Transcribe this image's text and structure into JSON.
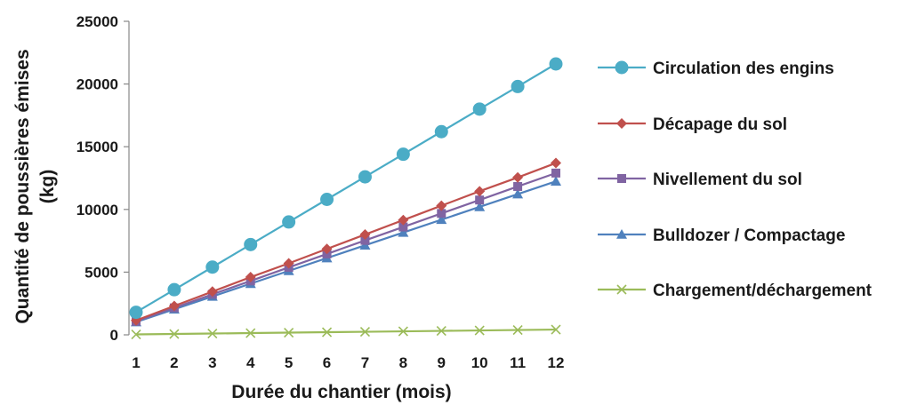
{
  "chart_data": {
    "type": "line",
    "title": "",
    "xlabel": "Durée du chantier (mois)",
    "ylabel_line1": "Quantité de poussières émises",
    "ylabel_line2": "(kg)",
    "x": [
      1,
      2,
      3,
      4,
      5,
      6,
      7,
      8,
      9,
      10,
      11,
      12
    ],
    "x_tick_labels": [
      "1",
      "2",
      "3",
      "4",
      "5",
      "6",
      "7",
      "8",
      "9",
      "10",
      "11",
      "12"
    ],
    "ylim": [
      0,
      25000
    ],
    "y_ticks": [
      0,
      5000,
      10000,
      15000,
      20000,
      25000
    ],
    "y_tick_labels": [
      "0",
      "5000",
      "10000",
      "15000",
      "20000",
      "25000"
    ],
    "grid": false,
    "legend_position": "right",
    "series": [
      {
        "name": "Circulation des engins",
        "color": "#4bacc6",
        "marker": "circle",
        "values": [
          1800,
          3600,
          5400,
          7200,
          9000,
          10800,
          12600,
          14400,
          16200,
          18000,
          19800,
          21600
        ]
      },
      {
        "name": "Décapage du sol",
        "color": "#c0504d",
        "marker": "diamond",
        "values": [
          1150,
          2300,
          3450,
          4600,
          5700,
          6850,
          8000,
          9150,
          10300,
          11450,
          12550,
          13700
        ]
      },
      {
        "name": "Nivellement du sol",
        "color": "#8064a2",
        "marker": "square",
        "values": [
          1080,
          2150,
          3230,
          4300,
          5380,
          6450,
          7530,
          8600,
          9680,
          10750,
          11830,
          12900
        ]
      },
      {
        "name": "Bulldozer / Compactage",
        "color": "#4f81bd",
        "marker": "triangle",
        "values": [
          1020,
          2040,
          3060,
          4080,
          5100,
          6120,
          7140,
          8160,
          9180,
          10200,
          11220,
          12240
        ]
      },
      {
        "name": "Chargement/déchargement",
        "color": "#9bbb59",
        "marker": "x",
        "values": [
          35,
          70,
          105,
          140,
          175,
          210,
          245,
          280,
          315,
          350,
          385,
          420
        ]
      }
    ]
  }
}
